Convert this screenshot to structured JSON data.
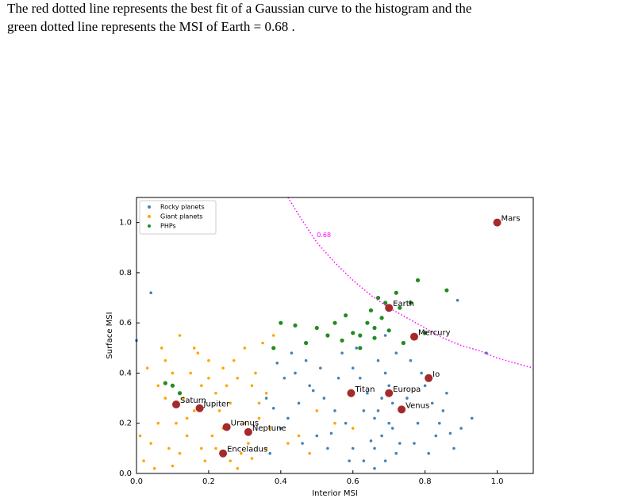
{
  "caption": {
    "line1": "The red dotted line represents the best fit of a Gaussian curve to the histogram and the",
    "line2": "green dotted line represents the MSI of Earth = 0.68 ."
  },
  "chart_data": {
    "type": "scatter",
    "xlabel": "Interior MSI",
    "ylabel": "Surface MSI",
    "xlim": [
      0,
      1.1
    ],
    "ylim": [
      0,
      1.1
    ],
    "xticks": [
      {
        "value": 0,
        "label": "0.0"
      },
      0.2,
      0.4,
      0.6,
      0.8,
      {
        "value": 1,
        "label": "1.0"
      }
    ],
    "yticks": [
      {
        "value": 0,
        "label": "0.0"
      },
      0.2,
      0.4,
      0.6,
      0.8,
      {
        "value": 1,
        "label": "1.0"
      }
    ],
    "legend": "upper left",
    "series": [
      {
        "name": "Rocky planets",
        "color": "#4682b4",
        "x": [
          0.66,
          0.68,
          0.7,
          0.72,
          0.67,
          0.69,
          0.71,
          0.65,
          0.68,
          0.7,
          0.73,
          0.66,
          0.69,
          0.71,
          0.67,
          0.64,
          0.62,
          0.6,
          0.58,
          0.55,
          0.52,
          0.5,
          0.48,
          0.45,
          0.42,
          0.4,
          0.38,
          0.36,
          0.44,
          0.47,
          0.53,
          0.57,
          0.61,
          0.63,
          0.75,
          0.78,
          0.8,
          0.83,
          0.85,
          0.88,
          0.9,
          0.93,
          0.76,
          0.79,
          0.82,
          0.86,
          0.74,
          0.77,
          0.81,
          0.84,
          0.56,
          0.59,
          0.46,
          0.41,
          0.39,
          0.51,
          0.54,
          0.49,
          0.43,
          0.37,
          0.04,
          0.0,
          0.89,
          0.97,
          0.87,
          0.72,
          0.69,
          0.66,
          0.63,
          0.6
        ],
        "y": [
          0.1,
          0.15,
          0.2,
          0.08,
          0.25,
          0.05,
          0.18,
          0.13,
          0.3,
          0.35,
          0.12,
          0.22,
          0.4,
          0.28,
          0.45,
          0.32,
          0.38,
          0.42,
          0.2,
          0.25,
          0.3,
          0.15,
          0.35,
          0.28,
          0.22,
          0.18,
          0.26,
          0.3,
          0.4,
          0.45,
          0.1,
          0.48,
          0.5,
          0.05,
          0.3,
          0.2,
          0.35,
          0.15,
          0.25,
          0.1,
          0.18,
          0.22,
          0.45,
          0.4,
          0.28,
          0.32,
          0.52,
          0.12,
          0.08,
          0.2,
          0.38,
          0.05,
          0.12,
          0.38,
          0.44,
          0.42,
          0.16,
          0.33,
          0.48,
          0.08,
          0.72,
          0.53,
          0.69,
          0.48,
          0.16,
          0.48,
          0.55,
          0.02,
          0.25,
          0.1
        ]
      },
      {
        "name": "Giant planets",
        "color": "#ffa500",
        "x": [
          0.02,
          0.04,
          0.06,
          0.08,
          0.1,
          0.12,
          0.14,
          0.16,
          0.18,
          0.2,
          0.22,
          0.24,
          0.26,
          0.28,
          0.3,
          0.32,
          0.34,
          0.36,
          0.38,
          0.03,
          0.05,
          0.07,
          0.09,
          0.11,
          0.13,
          0.15,
          0.17,
          0.19,
          0.21,
          0.23,
          0.25,
          0.27,
          0.29,
          0.31,
          0.33,
          0.35,
          0.37,
          0.01,
          0.06,
          0.1,
          0.14,
          0.18,
          0.22,
          0.26,
          0.3,
          0.34,
          0.08,
          0.12,
          0.16,
          0.2,
          0.24,
          0.28,
          0.32,
          0.36,
          0.45,
          0.5,
          0.55,
          0.6,
          0.42,
          0.48
        ],
        "y": [
          0.05,
          0.12,
          0.2,
          0.3,
          0.4,
          0.08,
          0.15,
          0.25,
          0.35,
          0.45,
          0.1,
          0.18,
          0.28,
          0.38,
          0.5,
          0.06,
          0.22,
          0.32,
          0.55,
          0.42,
          0.02,
          0.5,
          0.1,
          0.2,
          0.3,
          0.4,
          0.48,
          0.05,
          0.15,
          0.25,
          0.35,
          0.45,
          0.08,
          0.12,
          0.4,
          0.52,
          0.18,
          0.15,
          0.35,
          0.03,
          0.22,
          0.1,
          0.32,
          0.05,
          0.2,
          0.28,
          0.45,
          0.55,
          0.5,
          0.38,
          0.42,
          0.02,
          0.35,
          0.1,
          0.15,
          0.25,
          0.2,
          0.18,
          0.12,
          0.08
        ]
      },
      {
        "name": "PHPs",
        "color": "#228b22",
        "x": [
          0.38,
          0.4,
          0.44,
          0.47,
          0.5,
          0.53,
          0.55,
          0.57,
          0.58,
          0.6,
          0.62,
          0.64,
          0.65,
          0.66,
          0.67,
          0.68,
          0.69,
          0.7,
          0.72,
          0.73,
          0.74,
          0.76,
          0.78,
          0.8,
          0.86,
          0.62,
          0.66,
          0.08,
          0.1,
          0.12
        ],
        "y": [
          0.5,
          0.6,
          0.59,
          0.52,
          0.58,
          0.55,
          0.6,
          0.53,
          0.63,
          0.56,
          0.55,
          0.6,
          0.65,
          0.58,
          0.7,
          0.62,
          0.68,
          0.57,
          0.72,
          0.66,
          0.52,
          0.68,
          0.77,
          0.56,
          0.73,
          0.5,
          0.54,
          0.36,
          0.35,
          0.32
        ]
      }
    ],
    "curve": {
      "label": "0.68",
      "color": "#ff00ff",
      "x": [
        0.42,
        0.45,
        0.5,
        0.55,
        0.6,
        0.65,
        0.7,
        0.75,
        0.8,
        0.85,
        0.9,
        0.95,
        1.0,
        1.05,
        1.1
      ],
      "y": [
        1.1,
        1.03,
        0.92,
        0.84,
        0.77,
        0.71,
        0.66,
        0.62,
        0.58,
        0.54,
        0.51,
        0.49,
        0.46,
        0.44,
        0.42
      ]
    },
    "planets": {
      "color": "#a52a2a",
      "names": [
        "Mars",
        "Earth",
        "Mercury",
        "Io",
        "Europa",
        "Titan",
        "Venus",
        "Saturn",
        "Jupiter",
        "Uranus",
        "Neptune",
        "Enceladus"
      ],
      "x": [
        1.0,
        0.7,
        0.77,
        0.81,
        0.7,
        0.595,
        0.735,
        0.11,
        0.175,
        0.25,
        0.31,
        0.24
      ],
      "y": [
        1.0,
        0.66,
        0.545,
        0.38,
        0.32,
        0.32,
        0.255,
        0.275,
        0.26,
        0.185,
        0.165,
        0.08
      ]
    }
  }
}
